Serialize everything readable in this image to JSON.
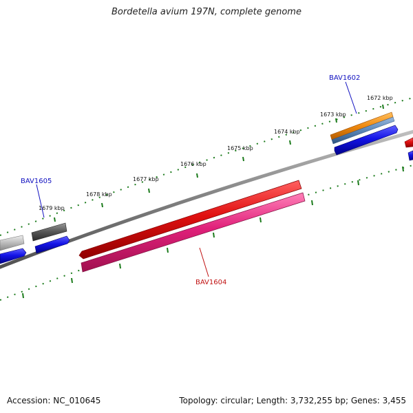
{
  "title": "Bordetella avium 197N, complete genome",
  "footer": {
    "accession": "Accession: NC_010645",
    "summary": "Topology: circular; Length: 3,732,255 bp; Genes: 3,455"
  },
  "ticks": [
    {
      "kbp": 1672,
      "label": "1672 kbp"
    },
    {
      "kbp": 1673,
      "label": "1673 kbp"
    },
    {
      "kbp": 1674,
      "label": "1674 kbp"
    },
    {
      "kbp": 1675,
      "label": "1675 kbp"
    },
    {
      "kbp": 1676,
      "label": "1676 kbp"
    },
    {
      "kbp": 1677,
      "label": "1677 kbp"
    },
    {
      "kbp": 1678,
      "label": "1678 kbp"
    },
    {
      "kbp": 1679,
      "label": "1679 kbp"
    }
  ],
  "gene_labels": [
    {
      "id": "BAV1602",
      "text": "BAV1602",
      "color": "#1010c0"
    },
    {
      "id": "BAV1604",
      "text": "BAV1604",
      "color": "#c01010"
    },
    {
      "id": "BAV1605",
      "text": "BAV1605",
      "color": "#1010c0"
    }
  ],
  "colors": {
    "backbone": "#808080",
    "tick": "#1a7a1a",
    "red": "#e01010",
    "magenta": "#e0207a",
    "blue": "#1414e6",
    "orange": "#f08a10",
    "steel": "#5a86b8",
    "darkgray": "#555555",
    "lightgray": "#bbbbbb"
  }
}
